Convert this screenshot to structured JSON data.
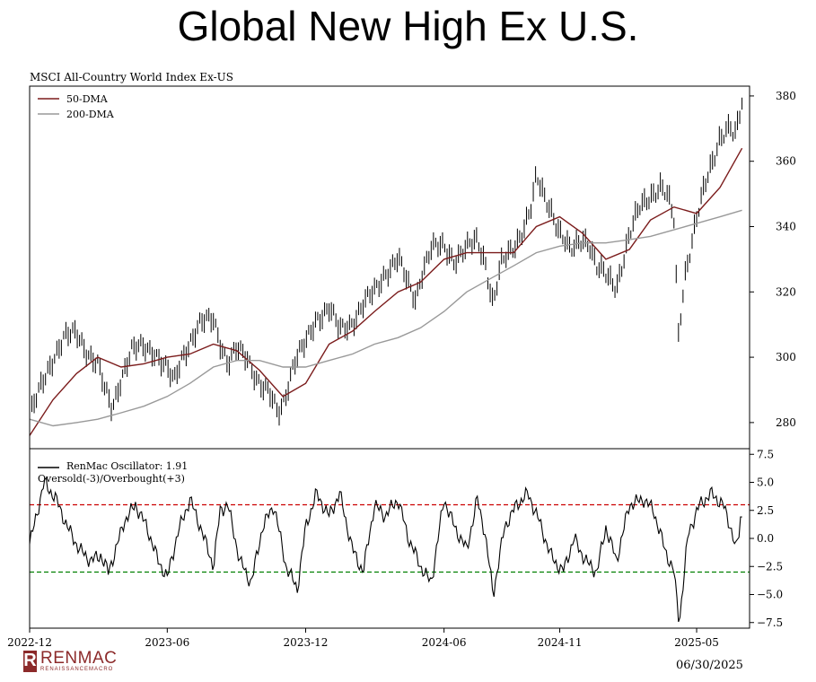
{
  "page": {
    "title": "Global New High Ex U.S.",
    "date_label": "06/30/2025",
    "brand": {
      "name": "RENMAC",
      "tagline": "RENAISSANCEMACRO",
      "mark": "R",
      "color": "#8c2a2a"
    }
  },
  "chart_data": [
    {
      "type": "line",
      "title": "MSCI All-Country World Index Ex-US",
      "yaxis_position": "right",
      "ylim": [
        272,
        383
      ],
      "yticks": [
        280,
        300,
        320,
        340,
        360,
        380
      ],
      "xlim": [
        "2022-12-01",
        "2025-07-10"
      ],
      "legend_position": "top-left",
      "grid": false,
      "price": {
        "name": "",
        "style": "ohlc-bars",
        "color": "#000000",
        "points": [
          [
            "2022-12-01",
            282
          ],
          [
            "2022-12-15",
            290
          ],
          [
            "2023-01-01",
            300
          ],
          [
            "2023-01-15",
            306
          ],
          [
            "2023-02-01",
            307
          ],
          [
            "2023-02-15",
            302
          ],
          [
            "2023-03-01",
            298
          ],
          [
            "2023-03-10",
            290
          ],
          [
            "2023-03-20",
            284
          ],
          [
            "2023-04-01",
            294
          ],
          [
            "2023-04-15",
            302
          ],
          [
            "2023-05-01",
            303
          ],
          [
            "2023-05-15",
            302
          ],
          [
            "2023-06-01",
            296
          ],
          [
            "2023-06-10",
            292
          ],
          [
            "2023-06-20",
            300
          ],
          [
            "2023-07-01",
            305
          ],
          [
            "2023-07-15",
            310
          ],
          [
            "2023-08-01",
            312
          ],
          [
            "2023-08-10",
            305
          ],
          [
            "2023-08-20",
            298
          ],
          [
            "2023-09-01",
            302
          ],
          [
            "2023-09-15",
            300
          ],
          [
            "2023-10-01",
            292
          ],
          [
            "2023-10-15",
            288
          ],
          [
            "2023-10-25",
            283
          ],
          [
            "2023-11-01",
            286
          ],
          [
            "2023-11-15",
            298
          ],
          [
            "2023-12-01",
            304
          ],
          [
            "2023-12-15",
            312
          ],
          [
            "2024-01-01",
            315
          ],
          [
            "2024-01-15",
            308
          ],
          [
            "2024-02-01",
            311
          ],
          [
            "2024-02-15",
            316
          ],
          [
            "2024-03-01",
            320
          ],
          [
            "2024-03-15",
            326
          ],
          [
            "2024-04-01",
            330
          ],
          [
            "2024-04-15",
            322
          ],
          [
            "2024-04-25",
            318
          ],
          [
            "2024-05-01",
            325
          ],
          [
            "2024-05-15",
            333
          ],
          [
            "2024-06-01",
            334
          ],
          [
            "2024-06-15",
            330
          ],
          [
            "2024-07-01",
            333
          ],
          [
            "2024-07-15",
            336
          ],
          [
            "2024-07-25",
            330
          ],
          [
            "2024-08-05",
            316
          ],
          [
            "2024-08-15",
            328
          ],
          [
            "2024-09-01",
            334
          ],
          [
            "2024-09-15",
            340
          ],
          [
            "2024-09-25",
            346
          ],
          [
            "2024-10-01",
            355
          ],
          [
            "2024-10-10",
            350
          ],
          [
            "2024-10-20",
            346
          ],
          [
            "2024-11-01",
            338
          ],
          [
            "2024-11-15",
            332
          ],
          [
            "2024-12-01",
            337
          ],
          [
            "2024-12-10",
            335
          ],
          [
            "2024-12-20",
            327
          ],
          [
            "2025-01-01",
            325
          ],
          [
            "2025-01-15",
            322
          ],
          [
            "2025-02-01",
            337
          ],
          [
            "2025-02-15",
            346
          ],
          [
            "2025-03-01",
            350
          ],
          [
            "2025-03-15",
            352
          ],
          [
            "2025-03-25",
            348
          ],
          [
            "2025-04-01",
            342
          ],
          [
            "2025-04-07",
            307
          ],
          [
            "2025-04-15",
            325
          ],
          [
            "2025-05-01",
            342
          ],
          [
            "2025-05-15",
            355
          ],
          [
            "2025-06-01",
            368
          ],
          [
            "2025-06-15",
            370
          ],
          [
            "2025-06-20",
            366
          ],
          [
            "2025-06-30",
            378
          ]
        ]
      },
      "series": [
        {
          "name": "50-DMA",
          "color": "#7b1c1c",
          "points": [
            [
              "2022-12-01",
              276
            ],
            [
              "2023-01-01",
              287
            ],
            [
              "2023-02-01",
              295
            ],
            [
              "2023-03-01",
              300
            ],
            [
              "2023-04-01",
              297
            ],
            [
              "2023-05-01",
              298
            ],
            [
              "2023-06-01",
              300
            ],
            [
              "2023-07-01",
              301
            ],
            [
              "2023-08-01",
              304
            ],
            [
              "2023-09-01",
              302
            ],
            [
              "2023-10-01",
              296
            ],
            [
              "2023-11-01",
              288
            ],
            [
              "2023-12-01",
              292
            ],
            [
              "2024-01-01",
              304
            ],
            [
              "2024-02-01",
              308
            ],
            [
              "2024-03-01",
              314
            ],
            [
              "2024-04-01",
              320
            ],
            [
              "2024-05-01",
              323
            ],
            [
              "2024-06-01",
              330
            ],
            [
              "2024-07-01",
              332
            ],
            [
              "2024-08-01",
              332
            ],
            [
              "2024-09-01",
              332
            ],
            [
              "2024-10-01",
              340
            ],
            [
              "2024-11-01",
              343
            ],
            [
              "2024-12-01",
              338
            ],
            [
              "2025-01-01",
              330
            ],
            [
              "2025-02-01",
              333
            ],
            [
              "2025-03-01",
              342
            ],
            [
              "2025-04-01",
              346
            ],
            [
              "2025-05-01",
              344
            ],
            [
              "2025-06-01",
              352
            ],
            [
              "2025-06-30",
              364
            ]
          ]
        },
        {
          "name": "200-DMA",
          "color": "#999999",
          "points": [
            [
              "2022-12-01",
              281
            ],
            [
              "2023-01-01",
              279
            ],
            [
              "2023-02-01",
              280
            ],
            [
              "2023-03-01",
              281
            ],
            [
              "2023-04-01",
              283
            ],
            [
              "2023-05-01",
              285
            ],
            [
              "2023-06-01",
              288
            ],
            [
              "2023-07-01",
              292
            ],
            [
              "2023-08-01",
              297
            ],
            [
              "2023-09-01",
              299
            ],
            [
              "2023-10-01",
              299
            ],
            [
              "2023-11-01",
              297
            ],
            [
              "2023-12-01",
              297
            ],
            [
              "2024-01-01",
              299
            ],
            [
              "2024-02-01",
              301
            ],
            [
              "2024-03-01",
              304
            ],
            [
              "2024-04-01",
              306
            ],
            [
              "2024-05-01",
              309
            ],
            [
              "2024-06-01",
              314
            ],
            [
              "2024-07-01",
              320
            ],
            [
              "2024-08-01",
              324
            ],
            [
              "2024-09-01",
              328
            ],
            [
              "2024-10-01",
              332
            ],
            [
              "2024-11-01",
              334
            ],
            [
              "2024-12-01",
              335
            ],
            [
              "2025-01-01",
              335
            ],
            [
              "2025-02-01",
              336
            ],
            [
              "2025-03-01",
              337
            ],
            [
              "2025-04-01",
              339
            ],
            [
              "2025-05-01",
              341
            ],
            [
              "2025-06-01",
              343
            ],
            [
              "2025-06-30",
              345
            ]
          ]
        }
      ]
    },
    {
      "type": "line",
      "title": "",
      "yaxis_position": "right",
      "ylim": [
        -8,
        8
      ],
      "yticks": [
        -7.5,
        -5.0,
        -2.5,
        0.0,
        2.5,
        5.0,
        7.5
      ],
      "ytick_labels": [
        "−7.5",
        "−5.0",
        "−2.5",
        "0.0",
        "2.5",
        "5.0",
        "7.5"
      ],
      "xlim": [
        "2022-12-01",
        "2025-07-10"
      ],
      "xticks": [
        "2022-12-01",
        "2023-06-01",
        "2023-12-01",
        "2024-06-01",
        "2024-11-01",
        "2025-05-01"
      ],
      "xtick_labels": [
        "2022-12",
        "2023-06",
        "2023-12",
        "2024-06",
        "2024-11",
        "2025-05"
      ],
      "legend_position": "top-left",
      "legend": {
        "main": "RenMac Oscillator: 1.91",
        "sub": "Oversold(-3)/Overbought(+3)"
      },
      "thresholds": [
        {
          "value": 3,
          "color": "#cc0000"
        },
        {
          "value": -3,
          "color": "#008000"
        }
      ],
      "series": [
        {
          "name": "RenMac Oscillator",
          "color": "#000000",
          "points": [
            [
              "2022-12-01",
              -0.5
            ],
            [
              "2022-12-10",
              2.0
            ],
            [
              "2022-12-20",
              5.0
            ],
            [
              "2023-01-05",
              3.5
            ],
            [
              "2023-01-20",
              1.0
            ],
            [
              "2023-02-05",
              -1.0
            ],
            [
              "2023-02-20",
              -2.0
            ],
            [
              "2023-03-05",
              -1.5
            ],
            [
              "2023-03-15",
              -3.0
            ],
            [
              "2023-03-25",
              -1.0
            ],
            [
              "2023-04-05",
              1.5
            ],
            [
              "2023-04-20",
              3.0
            ],
            [
              "2023-05-05",
              1.0
            ],
            [
              "2023-05-20",
              -2.0
            ],
            [
              "2023-06-01",
              -3.5
            ],
            [
              "2023-06-15",
              0.5
            ],
            [
              "2023-07-01",
              3.5
            ],
            [
              "2023-07-15",
              1.0
            ],
            [
              "2023-08-01",
              -2.5
            ],
            [
              "2023-08-10",
              2.5
            ],
            [
              "2023-08-20",
              3.0
            ],
            [
              "2023-09-05",
              -2.0
            ],
            [
              "2023-09-20",
              -4.0
            ],
            [
              "2023-10-05",
              1.0
            ],
            [
              "2023-10-20",
              3.0
            ],
            [
              "2023-11-05",
              -2.5
            ],
            [
              "2023-11-20",
              -4.5
            ],
            [
              "2023-12-01",
              1.0
            ],
            [
              "2023-12-15",
              4.0
            ],
            [
              "2024-01-01",
              2.0
            ],
            [
              "2024-01-15",
              4.0
            ],
            [
              "2024-02-01",
              -1.0
            ],
            [
              "2024-02-15",
              -3.0
            ],
            [
              "2024-03-01",
              3.0
            ],
            [
              "2024-03-15",
              2.0
            ],
            [
              "2024-04-01",
              3.5
            ],
            [
              "2024-04-15",
              0.0
            ],
            [
              "2024-05-01",
              -2.5
            ],
            [
              "2024-05-15",
              -4.0
            ],
            [
              "2024-06-01",
              3.5
            ],
            [
              "2024-06-15",
              1.0
            ],
            [
              "2024-07-01",
              -1.0
            ],
            [
              "2024-07-15",
              3.5
            ],
            [
              "2024-07-25",
              0.5
            ],
            [
              "2024-08-05",
              -5.0
            ],
            [
              "2024-08-20",
              1.0
            ],
            [
              "2024-09-05",
              3.0
            ],
            [
              "2024-09-20",
              4.0
            ],
            [
              "2024-10-05",
              1.5
            ],
            [
              "2024-10-20",
              -1.5
            ],
            [
              "2024-11-05",
              -3.0
            ],
            [
              "2024-11-20",
              0.0
            ],
            [
              "2024-12-05",
              -2.0
            ],
            [
              "2024-12-20",
              -3.0
            ],
            [
              "2025-01-01",
              1.0
            ],
            [
              "2025-01-15",
              -2.0
            ],
            [
              "2025-02-01",
              3.0
            ],
            [
              "2025-02-20",
              3.5
            ],
            [
              "2025-03-05",
              2.5
            ],
            [
              "2025-03-20",
              -1.0
            ],
            [
              "2025-04-01",
              -3.0
            ],
            [
              "2025-04-08",
              -7.5
            ],
            [
              "2025-04-20",
              0.5
            ],
            [
              "2025-05-05",
              3.0
            ],
            [
              "2025-05-20",
              4.0
            ],
            [
              "2025-06-05",
              3.0
            ],
            [
              "2025-06-15",
              1.0
            ],
            [
              "2025-06-22",
              -1.0
            ],
            [
              "2025-06-30",
              1.91
            ]
          ]
        }
      ]
    }
  ]
}
